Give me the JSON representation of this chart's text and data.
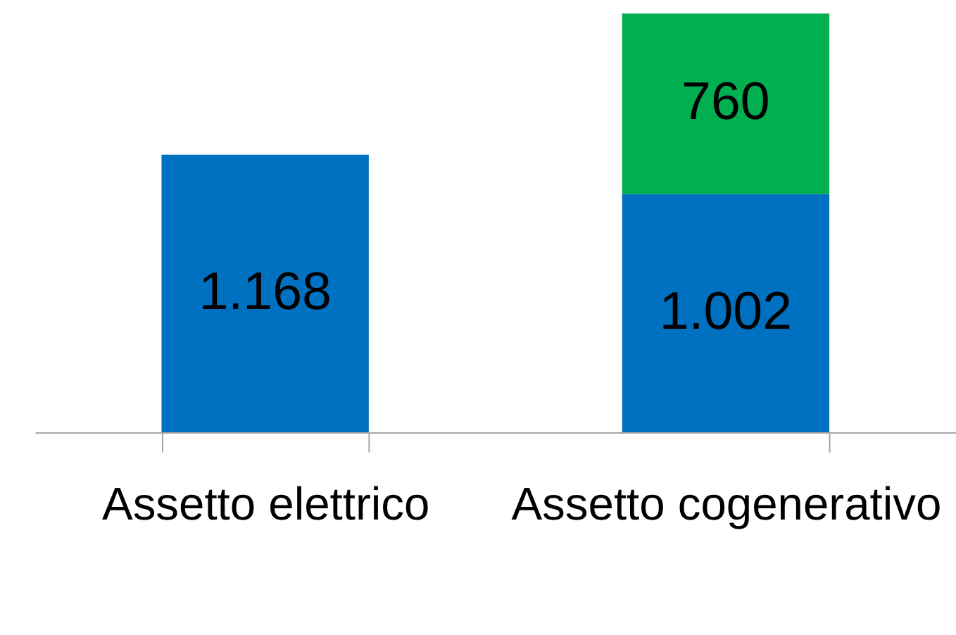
{
  "chart_data": {
    "type": "bar",
    "stacked": true,
    "categories": [
      "Assetto elettrico",
      "Assetto cogenerativo"
    ],
    "series": [
      {
        "color": "#0070c0",
        "values": [
          1168,
          1002
        ],
        "value_labels": [
          "1.168",
          "1.002"
        ]
      },
      {
        "color": "#00b050",
        "values": [
          null,
          760
        ],
        "value_labels": [
          null,
          "760"
        ]
      }
    ],
    "ylim": [
      0,
      1762
    ],
    "tick_labels": "x",
    "grid": false,
    "legend": false
  }
}
